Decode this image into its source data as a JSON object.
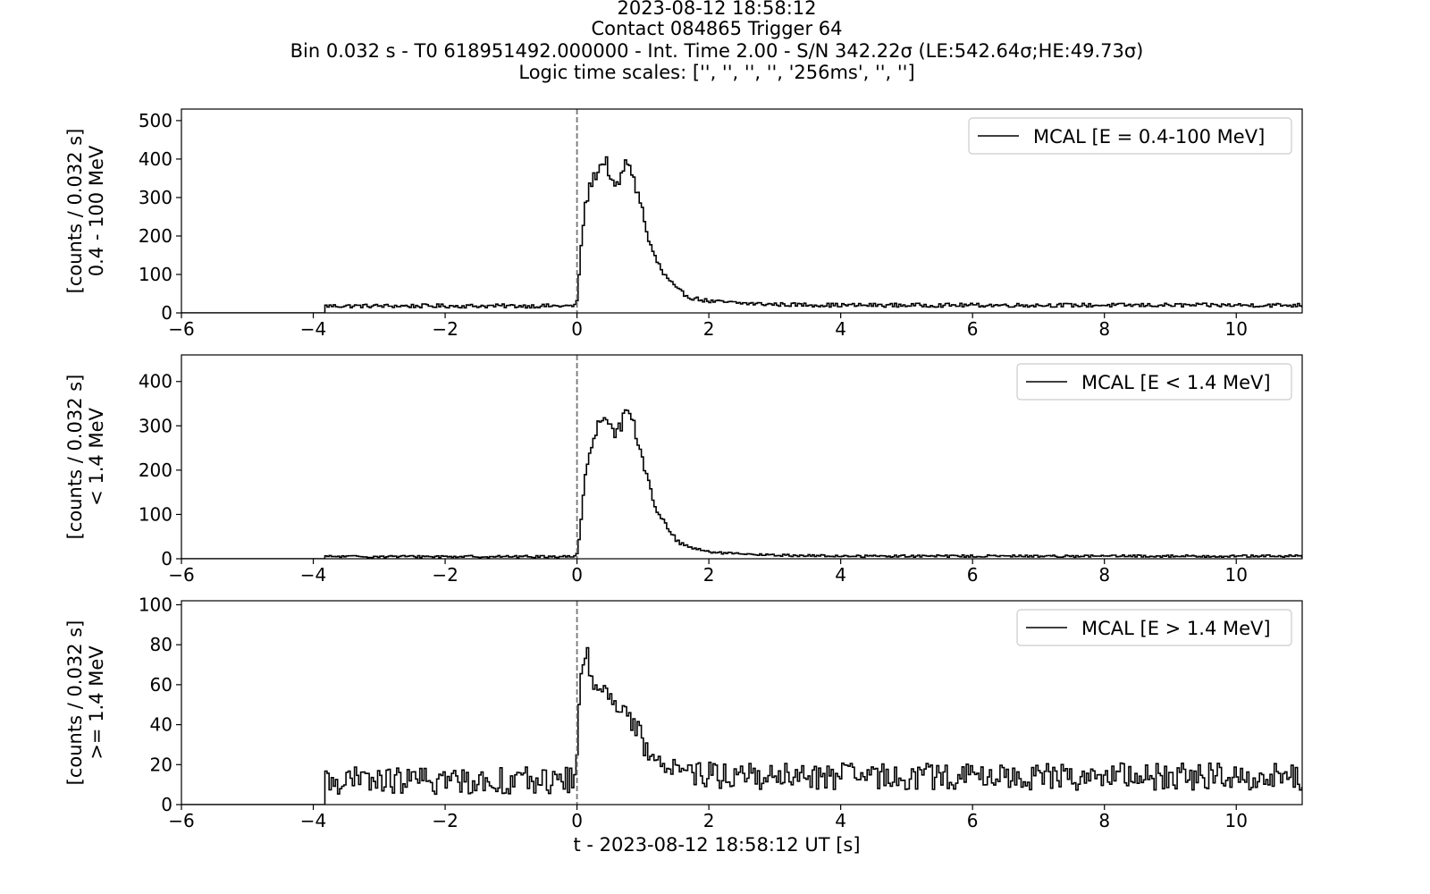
{
  "title_lines": [
    "2023-08-12 18:58:12",
    "Contact 084865   Trigger 64",
    "Bin 0.032 s - T0 618951492.000000 - Int. Time 2.00 - S/N 342.22σ (LE:542.64σ;HE:49.73σ)",
    "Logic time scales: ['', '', '', '', '256ms', '', '']"
  ],
  "xlabel": "t - 2023-08-12 18:58:12 UT [s]",
  "chart_data": [
    {
      "type": "line",
      "style": "step",
      "ylabel_lines": [
        "[counts / 0.032 s]",
        "0.4 - 100 MeV"
      ],
      "legend": "MCAL [E = 0.4-100 MeV]",
      "legend_position": "top-right",
      "xlim": [
        -6,
        11
      ],
      "ylim": [
        0,
        530
      ],
      "xticks": [
        -6,
        -4,
        -2,
        0,
        2,
        4,
        6,
        8,
        10
      ],
      "xtick_labels": [
        "−6",
        "−4",
        "−2",
        "0",
        "2",
        "4",
        "6",
        "8",
        "10"
      ],
      "yticks": [
        0,
        100,
        200,
        300,
        400,
        500
      ],
      "ytick_labels": [
        "0",
        "100",
        "200",
        "300",
        "400",
        "500"
      ],
      "trigger_line_x": 0,
      "bin_width": 0.032,
      "data_start": -3.84,
      "baseline": 18,
      "baseline_noise": 3,
      "tail_level": 20,
      "curve": [
        [
          -0.032,
          20
        ],
        [
          0.0,
          50
        ],
        [
          0.05,
          180
        ],
        [
          0.1,
          270
        ],
        [
          0.2,
          340
        ],
        [
          0.3,
          370
        ],
        [
          0.4,
          398
        ],
        [
          0.45,
          385
        ],
        [
          0.5,
          340
        ],
        [
          0.55,
          320
        ],
        [
          0.65,
          350
        ],
        [
          0.7,
          380
        ],
        [
          0.78,
          395
        ],
        [
          0.85,
          340
        ],
        [
          0.95,
          290
        ],
        [
          1.05,
          200
        ],
        [
          1.15,
          150
        ],
        [
          1.3,
          100
        ],
        [
          1.5,
          60
        ],
        [
          1.7,
          40
        ],
        [
          2.0,
          30
        ],
        [
          2.5,
          25
        ],
        [
          3.0,
          22
        ],
        [
          4.0,
          20
        ],
        [
          11.0,
          20
        ]
      ]
    },
    {
      "type": "line",
      "style": "step",
      "ylabel_lines": [
        "[counts / 0.032 s]",
        "< 1.4 MeV"
      ],
      "legend": "MCAL [E < 1.4 MeV]",
      "legend_position": "top-right",
      "xlim": [
        -6,
        11
      ],
      "ylim": [
        0,
        460
      ],
      "xticks": [
        -6,
        -4,
        -2,
        0,
        2,
        4,
        6,
        8,
        10
      ],
      "xtick_labels": [
        "−6",
        "−4",
        "−2",
        "0",
        "2",
        "4",
        "6",
        "8",
        "10"
      ],
      "yticks": [
        0,
        100,
        200,
        300,
        400
      ],
      "ytick_labels": [
        "0",
        "100",
        "200",
        "300",
        "400"
      ],
      "trigger_line_x": 0,
      "bin_width": 0.032,
      "data_start": -3.84,
      "baseline": 5,
      "baseline_noise": 1.5,
      "tail_level": 6,
      "curve": [
        [
          -0.032,
          6
        ],
        [
          0.0,
          20
        ],
        [
          0.05,
          100
        ],
        [
          0.1,
          180
        ],
        [
          0.2,
          250
        ],
        [
          0.3,
          300
        ],
        [
          0.4,
          330
        ],
        [
          0.45,
          325
        ],
        [
          0.5,
          300
        ],
        [
          0.55,
          280
        ],
        [
          0.65,
          300
        ],
        [
          0.72,
          330
        ],
        [
          0.78,
          345
        ],
        [
          0.85,
          300
        ],
        [
          0.95,
          240
        ],
        [
          1.05,
          180
        ],
        [
          1.15,
          130
        ],
        [
          1.3,
          80
        ],
        [
          1.5,
          40
        ],
        [
          1.7,
          25
        ],
        [
          2.0,
          15
        ],
        [
          2.5,
          10
        ],
        [
          3.0,
          8
        ],
        [
          4.0,
          6
        ],
        [
          11.0,
          6
        ]
      ]
    },
    {
      "type": "line",
      "style": "step",
      "ylabel_lines": [
        "[counts / 0.032 s]",
        ">= 1.4 MeV"
      ],
      "legend": "MCAL [E > 1.4 MeV]",
      "legend_position": "top-right",
      "xlim": [
        -6,
        11
      ],
      "ylim": [
        0,
        102
      ],
      "xticks": [
        -6,
        -4,
        -2,
        0,
        2,
        4,
        6,
        8,
        10
      ],
      "xtick_labels": [
        "−6",
        "−4",
        "−2",
        "0",
        "2",
        "4",
        "6",
        "8",
        "10"
      ],
      "yticks": [
        0,
        20,
        40,
        60,
        80,
        100
      ],
      "ytick_labels": [
        "0",
        "20",
        "40",
        "60",
        "80",
        "100"
      ],
      "trigger_line_x": 0,
      "bin_width": 0.032,
      "data_start": -3.84,
      "baseline": 12,
      "baseline_noise": 4,
      "tail_level": 14,
      "curve": [
        [
          -0.032,
          12
        ],
        [
          0.0,
          40
        ],
        [
          0.05,
          65
        ],
        [
          0.1,
          78
        ],
        [
          0.2,
          62
        ],
        [
          0.3,
          60
        ],
        [
          0.4,
          65
        ],
        [
          0.5,
          55
        ],
        [
          0.6,
          45
        ],
        [
          0.7,
          52
        ],
        [
          0.8,
          40
        ],
        [
          0.9,
          38
        ],
        [
          1.0,
          30
        ],
        [
          1.1,
          22
        ],
        [
          1.3,
          20
        ],
        [
          1.6,
          18
        ],
        [
          2.0,
          15
        ],
        [
          3.0,
          14
        ],
        [
          11.0,
          14
        ]
      ]
    }
  ]
}
